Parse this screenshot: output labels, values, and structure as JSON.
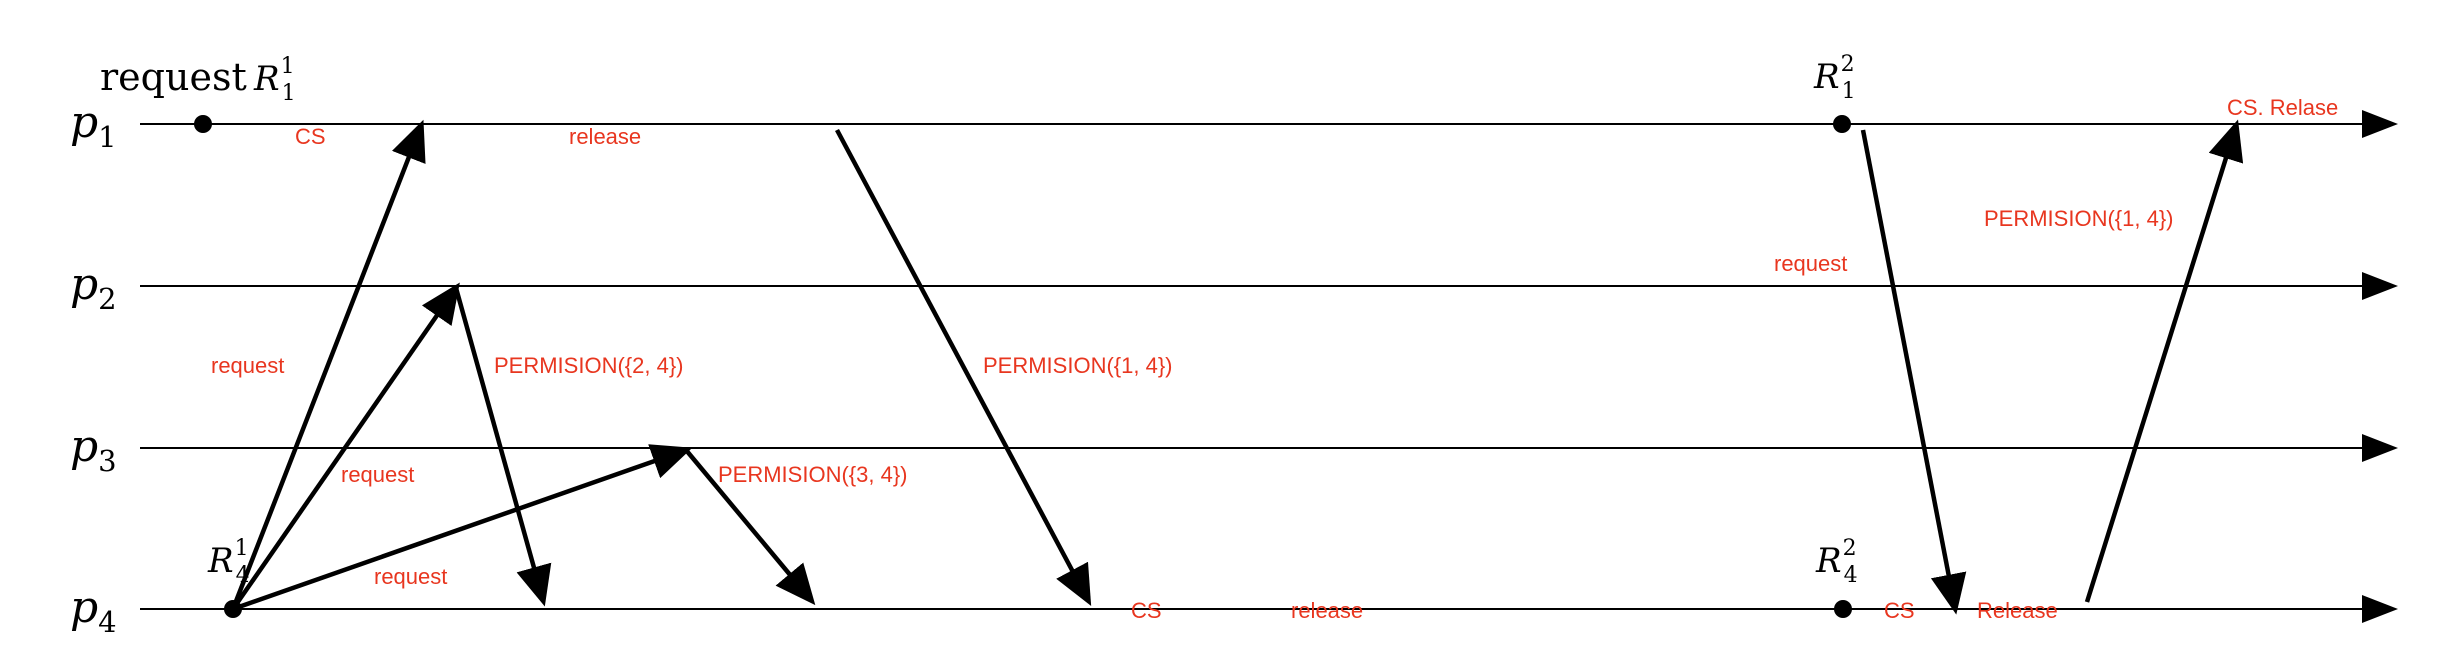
{
  "colors": {
    "annotation": "#e8361f",
    "line": "#000000"
  },
  "processes": [
    {
      "base": "p",
      "sub": "1"
    },
    {
      "base": "p",
      "sub": "2"
    },
    {
      "base": "p",
      "sub": "3"
    },
    {
      "base": "p",
      "sub": "4"
    }
  ],
  "events": {
    "request_word": "request",
    "r11": {
      "base": "R",
      "sub": "1",
      "sup": "1"
    },
    "r41": {
      "base": "R",
      "sub": "4",
      "sup": "1"
    },
    "r12": {
      "base": "R",
      "sub": "1",
      "sup": "2"
    },
    "r42": {
      "base": "R",
      "sub": "4",
      "sup": "2"
    }
  },
  "annotations": {
    "cs_p1": "CS",
    "release_p1": "release",
    "cs_release_p1": "CS. Relase",
    "permission_14_top": "PERMISION({1, 4})",
    "request_p2_right": "request",
    "request_left": "request",
    "permission_24": "PERMISION({2, 4})",
    "permission_14_mid": "PERMISION({1, 4})",
    "request_mid": "request",
    "permission_34": "PERMISION({3, 4})",
    "request_low": "request",
    "cs_p4": "CS",
    "release_p4": "release",
    "cs_p4_right": "CS",
    "release_p4_right": "Release"
  }
}
